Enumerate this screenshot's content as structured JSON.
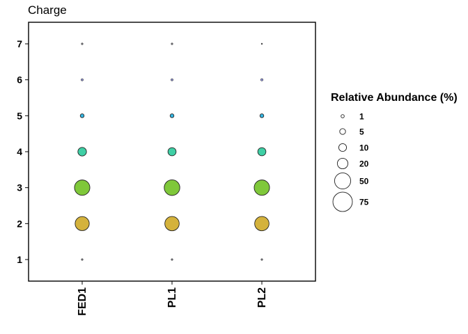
{
  "chart_data": {
    "type": "scatter",
    "title": "Charge",
    "xlabel": "",
    "ylabel": "",
    "categories": [
      "FED1",
      "PL1",
      "PL2"
    ],
    "y_ticks": [
      "1",
      "2",
      "3",
      "4",
      "5",
      "6",
      "7"
    ],
    "ylim": [
      0.4,
      7.6
    ],
    "grid": false,
    "legend_position": "right",
    "size_legend": {
      "title": "Relative Abundance (%)",
      "entries": [
        {
          "label": "1",
          "value": 1
        },
        {
          "label": "5",
          "value": 5
        },
        {
          "label": "10",
          "value": 10
        },
        {
          "label": "20",
          "value": 20
        },
        {
          "label": "50",
          "value": 50
        },
        {
          "label": "75",
          "value": 75
        }
      ]
    },
    "charge_colors": {
      "1": "#9a9aa6",
      "2": "#d4b23c",
      "3": "#7fc83a",
      "4": "#3fcfa5",
      "5": "#35b6e3",
      "6": "#9a9ff0",
      "7": "#9a9aa6"
    },
    "points": [
      {
        "sample": "FED1",
        "charge": 1,
        "abundance": 0.3
      },
      {
        "sample": "FED1",
        "charge": 2,
        "abundance": 27
      },
      {
        "sample": "FED1",
        "charge": 3,
        "abundance": 32
      },
      {
        "sample": "FED1",
        "charge": 4,
        "abundance": 10
      },
      {
        "sample": "FED1",
        "charge": 5,
        "abundance": 2
      },
      {
        "sample": "FED1",
        "charge": 6,
        "abundance": 0.6
      },
      {
        "sample": "FED1",
        "charge": 7,
        "abundance": 0.1
      },
      {
        "sample": "PL1",
        "charge": 1,
        "abundance": 0.3
      },
      {
        "sample": "PL1",
        "charge": 2,
        "abundance": 28
      },
      {
        "sample": "PL1",
        "charge": 3,
        "abundance": 33
      },
      {
        "sample": "PL1",
        "charge": 4,
        "abundance": 9
      },
      {
        "sample": "PL1",
        "charge": 5,
        "abundance": 2
      },
      {
        "sample": "PL1",
        "charge": 6,
        "abundance": 0.6
      },
      {
        "sample": "PL1",
        "charge": 7,
        "abundance": 0.1
      },
      {
        "sample": "PL2",
        "charge": 1,
        "abundance": 0.3
      },
      {
        "sample": "PL2",
        "charge": 2,
        "abundance": 28
      },
      {
        "sample": "PL2",
        "charge": 3,
        "abundance": 32
      },
      {
        "sample": "PL2",
        "charge": 4,
        "abundance": 9
      },
      {
        "sample": "PL2",
        "charge": 5,
        "abundance": 2
      },
      {
        "sample": "PL2",
        "charge": 6,
        "abundance": 0.7
      },
      {
        "sample": "PL2",
        "charge": 7,
        "abundance": 0
      }
    ]
  }
}
